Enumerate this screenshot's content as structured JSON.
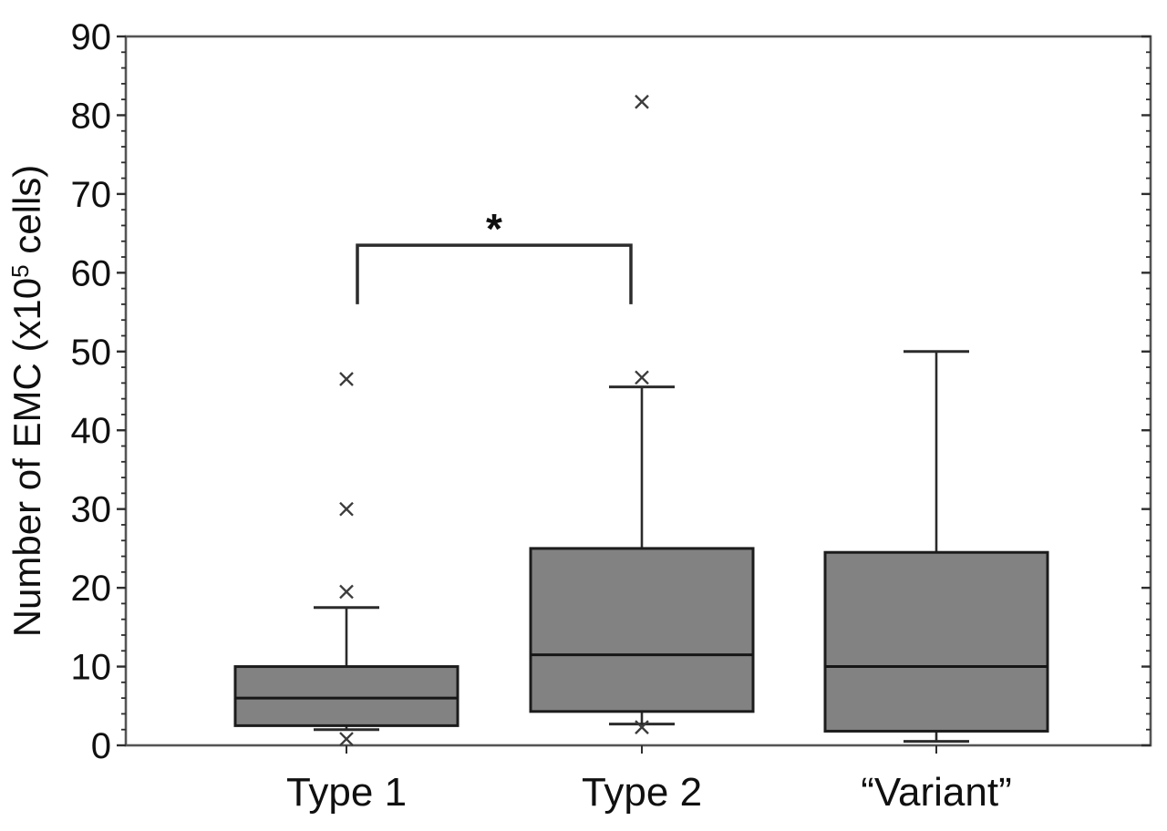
{
  "chart_data": {
    "type": "box",
    "title": "",
    "ylabel_parts": {
      "prefix": "Number of EMC (x10",
      "superscript": "5",
      "suffix": " cells)"
    },
    "axis": {
      "ymin": 0,
      "ymax": 90,
      "major_step": 10,
      "minor_step": 2,
      "grid": false
    },
    "categories": [
      "Type 1",
      "Type 2",
      "“Variant”"
    ],
    "series": [
      {
        "category": "Type 1",
        "whisker_low": 2,
        "q1": 2.5,
        "median": 6,
        "q3": 10,
        "whisker_high": 17.5,
        "outliers": [
          46.5,
          30,
          19.5,
          0.8
        ]
      },
      {
        "category": "Type 2",
        "whisker_low": 2.7,
        "q1": 4.3,
        "median": 11.5,
        "q3": 25,
        "whisker_high": 45.5,
        "outliers": [
          81.7,
          46.7,
          2.3
        ]
      },
      {
        "category": "“Variant”",
        "whisker_low": 0.5,
        "q1": 1.8,
        "median": 10,
        "q3": 24.5,
        "whisker_high": 50,
        "outliers": []
      }
    ],
    "significance": {
      "label": "*",
      "between": [
        "Type 1",
        "Type 2"
      ],
      "bar_value": 63.5,
      "left_drop_value": 56,
      "right_drop_value": 56
    },
    "outlier_marker": "x-cross",
    "colors": {
      "background": "#ffffff",
      "box_fill": "#828282",
      "box_stroke": "#1c1c1c",
      "median": "#161616",
      "whisker": "#2b2b2b",
      "frame": "#555555",
      "tick": "#2e2e2e",
      "text": "#101010",
      "outlier": "#3c3c3c",
      "bracket": "#2c2c2c"
    }
  }
}
